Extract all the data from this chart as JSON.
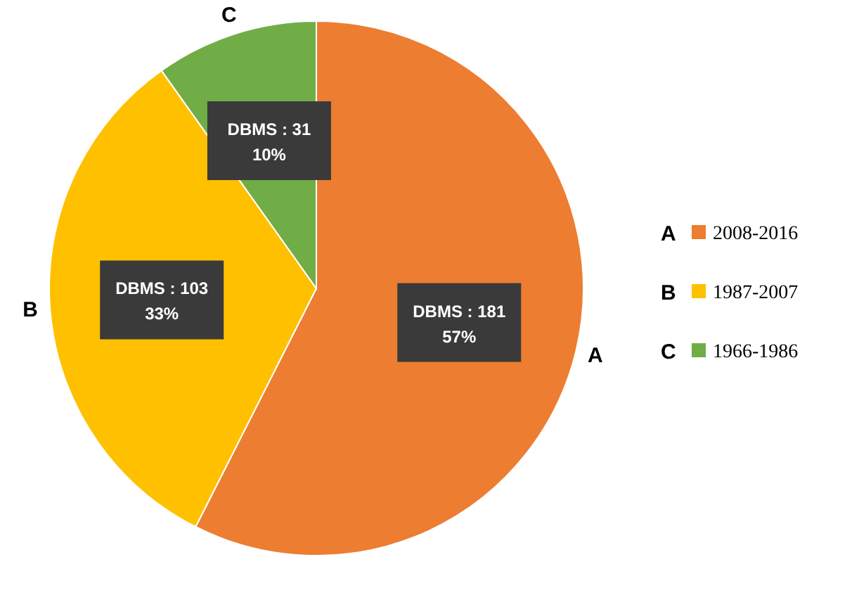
{
  "chart_data": {
    "type": "pie",
    "categories": [
      "2008-2016",
      "1987-2007",
      "1966-1986"
    ],
    "values": [
      181,
      103,
      31
    ],
    "colors": [
      "#ed7d31",
      "#ffc000",
      "#70ad47"
    ],
    "value_labels": [
      "DBMS :  181\n57%",
      "DBMS : 103\n33%",
      "DBMS : 31\n10%"
    ],
    "annotations": [
      {
        "text": "A",
        "x": "2008-2016"
      },
      {
        "text": "B",
        "x": "1987-2007"
      },
      {
        "text": "C",
        "x": "1966-1986"
      }
    ],
    "legend": "right"
  }
}
